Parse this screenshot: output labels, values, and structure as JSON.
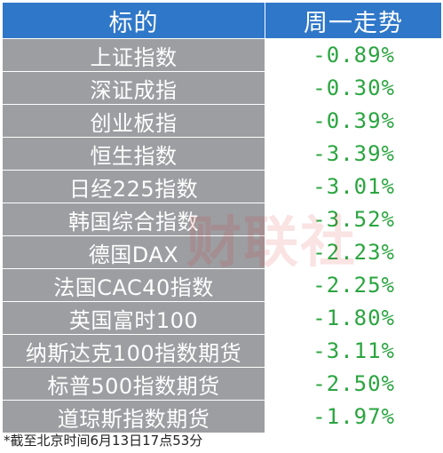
{
  "header": {
    "col_name": "标的",
    "col_change": "周一走势"
  },
  "rows": [
    {
      "name": "上证指数",
      "change": "-0.89%"
    },
    {
      "name": "深证成指",
      "change": "-0.30%"
    },
    {
      "name": "创业板指",
      "change": "-0.39%"
    },
    {
      "name": "恒生指数",
      "change": "-3.39%"
    },
    {
      "name": "日经225指数",
      "change": "-3.01%"
    },
    {
      "name": "韩国综合指数",
      "change": "-3.52%"
    },
    {
      "name": "德国DAX",
      "change": "-2.23%"
    },
    {
      "name": "法国CAC40指数",
      "change": "-2.25%"
    },
    {
      "name": "英国富时100",
      "change": "-1.80%"
    },
    {
      "name": "纳斯达克100指数期货",
      "change": "-3.11%"
    },
    {
      "name": "标普500指数期货",
      "change": "-2.50%"
    },
    {
      "name": "道琼斯指数期货",
      "change": "-1.97%"
    }
  ],
  "footnote": "*截至北京时间6月13日17点53分",
  "watermark": "财联社",
  "colors": {
    "header_bg": "#2f77c8",
    "name_bg": "#9d9ea1",
    "change_text": "#2aa53f",
    "watermark": "#d72828"
  }
}
